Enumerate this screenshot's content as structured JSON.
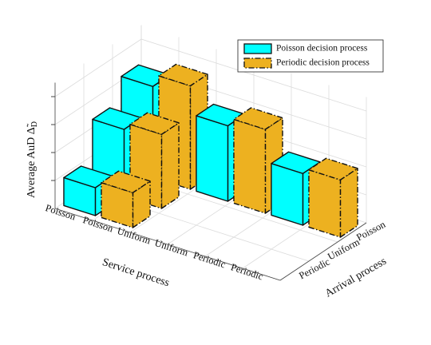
{
  "chart_data": {
    "type": "bar3d",
    "zlabel": "Average AuD Δ̃",
    "zlabel_sub": "D",
    "xlabel": "Service process",
    "ylabel": "Arrival process",
    "x_categories": [
      "Poisson",
      "Poisson",
      "Uniform",
      "Uniform",
      "Periodic",
      "Periodic"
    ],
    "y_categories": [
      "Periodic",
      "Uniform",
      "Poisson"
    ],
    "zlim": [
      0,
      4.5
    ],
    "zticks": [
      1,
      2,
      3,
      4
    ],
    "grid": true,
    "legend": "top-right",
    "series": [
      {
        "name": "Poisson decision process",
        "color": "#00ffff",
        "line_style": "solid",
        "values": [
          [
            1.0,
            2.4,
            3.25
          ],
          [
            null,
            null,
            2.7
          ],
          [
            null,
            null,
            1.85
          ]
        ]
      },
      {
        "name": "Periodic decision process",
        "color": "#edb120",
        "line_style": "dashdot",
        "values": [
          [
            1.25,
            2.65,
            3.7
          ],
          [
            null,
            null,
            3.0
          ],
          [
            null,
            null,
            2.05
          ]
        ]
      }
    ]
  }
}
